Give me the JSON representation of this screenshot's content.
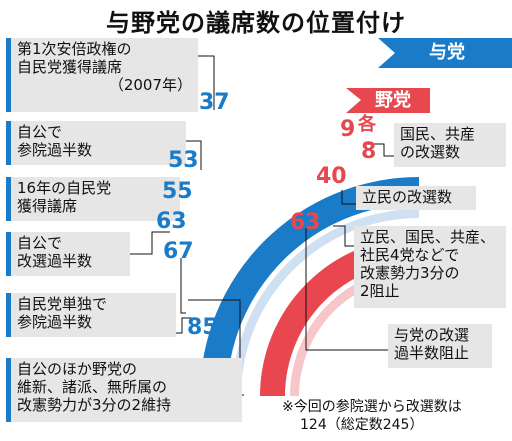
{
  "title": "与野党の議席数の位置付け",
  "colors": {
    "ruling": "#1a7cc8",
    "opposition": "#e8474f",
    "box": "#e6e6e6"
  },
  "legend": {
    "ruling": "与党",
    "opposition": "野党"
  },
  "left_items": [
    {
      "lines": [
        "第1次安倍政権の",
        "自民党獲得議席",
        "（2007年）"
      ],
      "value": "37"
    },
    {
      "lines": [
        "自公で",
        "参院過半数"
      ],
      "value": "53"
    },
    {
      "lines": [
        "16年の自民党",
        "獲得議席"
      ],
      "value": "55"
    },
    {
      "lines": [
        "自公で",
        "改選過半数"
      ],
      "value": "63"
    },
    {
      "value": "67"
    },
    {
      "lines": [
        "自民党単独で",
        "参院過半数"
      ]
    },
    {
      "lines": [
        "自公のほか野党の",
        "維新、諸派、無所属の",
        "改憲勢力が3分の2維持"
      ],
      "value": "85"
    }
  ],
  "right_items": [
    {
      "value_a": "9",
      "value_b": "8",
      "each": "各",
      "lines": [
        "国民、共産",
        "の改選数"
      ]
    },
    {
      "value": "40",
      "lines": [
        "立民の改選数"
      ]
    },
    {
      "lines": [
        "立民、国民、共産、",
        "社民4党などで",
        "改憲勢力3分の",
        "2阻止"
      ]
    },
    {
      "value": "63",
      "lines": [
        "与党の改選",
        "過半数阻止"
      ]
    }
  ],
  "note": [
    "※今回の参院選から改選数は",
    "124（総定数245）"
  ]
}
